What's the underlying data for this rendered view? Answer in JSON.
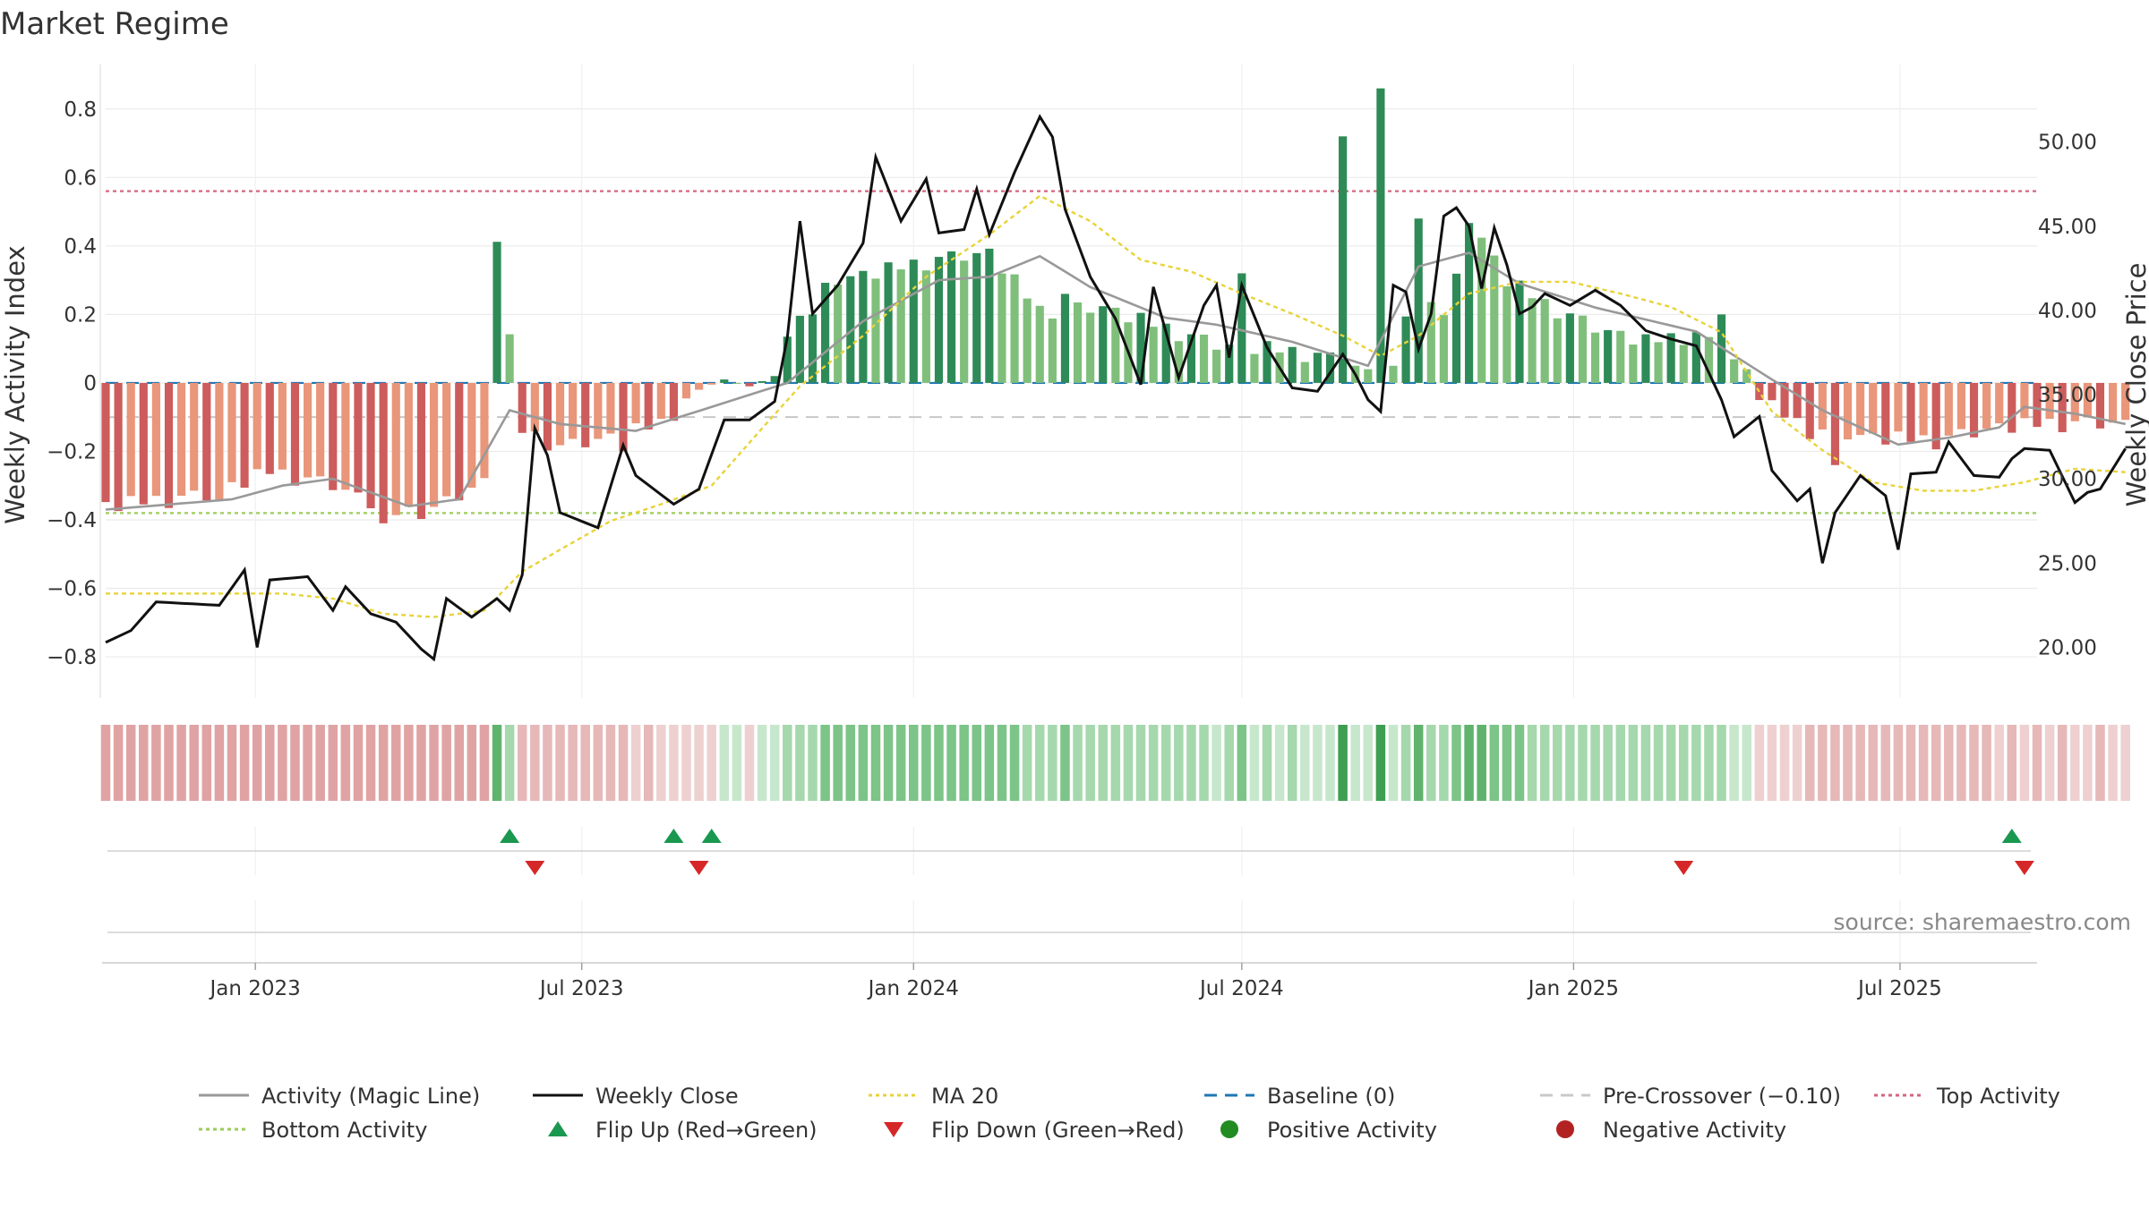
{
  "chart_data": {
    "type": "bar+line",
    "title": "Market Regime",
    "ylabel_left": "Weekly Activity Index",
    "ylabel_right": "Weekly Close Price",
    "source": "source: sharemaestro.com",
    "x_start": "2022-10-10",
    "x_end": "2025-09-15",
    "x_ticks": [
      {
        "date": "2023-01-01",
        "label": "Jan 2023"
      },
      {
        "date": "2023-07-01",
        "label": "Jul 2023"
      },
      {
        "date": "2024-01-01",
        "label": "Jan 2024"
      },
      {
        "date": "2024-07-01",
        "label": "Jul 2024"
      },
      {
        "date": "2025-01-01",
        "label": "Jan 2025"
      },
      {
        "date": "2025-07-01",
        "label": "Jul 2025"
      }
    ],
    "ylim_left": [
      -0.92,
      0.93
    ],
    "ylim_right": [
      17.0,
      54.6
    ],
    "y_ticks_left": [
      "0.8",
      "0.6",
      "0.4",
      "0.2",
      "0",
      "−0.2",
      "−0.4",
      "−0.6",
      "−0.8"
    ],
    "y_ticks_left_values": [
      0.8,
      0.6,
      0.4,
      0.2,
      0,
      -0.2,
      -0.4,
      -0.6,
      -0.8
    ],
    "y_ticks_right": [
      "50.00",
      "45.00",
      "40.00",
      "35.00",
      "30.00",
      "25.00",
      "20.00"
    ],
    "y_ticks_right_values": [
      50,
      45,
      40,
      35,
      30,
      25,
      20
    ],
    "reference_lines": {
      "top": 0.56,
      "bottom": -0.38,
      "baseline": 0,
      "pre_crossover": -0.1
    },
    "activity_keypoints": [
      [
        0,
        -0.36
      ],
      [
        8,
        -0.33
      ],
      [
        13,
        -0.26
      ],
      [
        18,
        -0.3
      ],
      [
        23,
        -0.38
      ],
      [
        26,
        -0.37
      ],
      [
        30,
        -0.29
      ],
      [
        31,
        0.43
      ],
      [
        32,
        0.12
      ],
      [
        33,
        -0.14
      ],
      [
        36,
        -0.19
      ],
      [
        40,
        -0.16
      ],
      [
        44,
        -0.12
      ],
      [
        47,
        -0.02
      ],
      [
        49,
        0.01
      ],
      [
        51,
        -0.01
      ],
      [
        53,
        0.02
      ],
      [
        55,
        0.22
      ],
      [
        58,
        0.3
      ],
      [
        62,
        0.33
      ],
      [
        66,
        0.36
      ],
      [
        70,
        0.38
      ],
      [
        74,
        0.21
      ],
      [
        79,
        0.22
      ],
      [
        83,
        0.17
      ],
      [
        88,
        0.11
      ],
      [
        92,
        0.1
      ],
      [
        96,
        0.08
      ],
      [
        100,
        0.04
      ],
      [
        101,
        0.02
      ],
      [
        102,
        0.05
      ],
      [
        103,
        0.2
      ],
      [
        104,
        0.33
      ],
      [
        106,
        0.19
      ],
      [
        107,
        0.3
      ],
      [
        108,
        0.48
      ],
      [
        111,
        0.3
      ],
      [
        114,
        0.23
      ],
      [
        118,
        0.16
      ],
      [
        122,
        0.12
      ],
      [
        126,
        0.14
      ],
      [
        130,
        0.04
      ],
      [
        131,
        -0.05
      ],
      [
        135,
        -0.14
      ],
      [
        140,
        -0.16
      ],
      [
        145,
        -0.17
      ],
      [
        150,
        -0.13
      ],
      [
        154,
        -0.12
      ],
      [
        160,
        -0.12
      ]
    ],
    "activity_overrides": [
      [
        9,
        -0.34
      ],
      [
        22,
        -0.41
      ],
      [
        41,
        -0.2
      ],
      [
        56,
        0.2
      ],
      [
        76,
        0.26
      ],
      [
        90,
        0.32
      ],
      [
        98,
        0.72
      ],
      [
        101,
        0.86
      ],
      [
        104,
        0.48
      ],
      [
        128,
        0.2
      ],
      [
        137,
        -0.24
      ]
    ],
    "close_keypoints": [
      [
        0,
        20.3
      ],
      [
        2,
        21.0
      ],
      [
        4,
        22.7
      ],
      [
        9,
        22.5
      ],
      [
        11,
        24.6
      ],
      [
        12,
        20.0
      ],
      [
        13,
        24.0
      ],
      [
        16,
        24.2
      ],
      [
        18,
        22.2
      ],
      [
        19,
        23.6
      ],
      [
        21,
        22.0
      ],
      [
        23,
        21.5
      ],
      [
        25,
        19.9
      ],
      [
        26,
        19.3
      ],
      [
        27,
        22.9
      ],
      [
        29,
        21.8
      ],
      [
        31,
        22.9
      ],
      [
        32,
        22.2
      ],
      [
        33,
        24.3
      ],
      [
        34,
        33.0
      ],
      [
        35,
        31.4
      ],
      [
        36,
        28.0
      ],
      [
        39,
        27.1
      ],
      [
        41,
        32.0
      ],
      [
        42,
        30.2
      ],
      [
        45,
        28.5
      ],
      [
        47,
        29.4
      ],
      [
        49,
        33.5
      ],
      [
        51,
        33.5
      ],
      [
        53,
        34.6
      ],
      [
        54,
        38.4
      ],
      [
        55,
        45.3
      ],
      [
        56,
        39.8
      ],
      [
        58,
        41.5
      ],
      [
        60,
        44.0
      ],
      [
        61,
        49.1
      ],
      [
        63,
        45.3
      ],
      [
        65,
        47.8
      ],
      [
        66,
        44.6
      ],
      [
        68,
        44.8
      ],
      [
        69,
        47.2
      ],
      [
        70,
        44.5
      ],
      [
        72,
        48.2
      ],
      [
        74,
        51.5
      ],
      [
        75,
        50.3
      ],
      [
        76,
        46.0
      ],
      [
        78,
        42.0
      ],
      [
        80,
        39.5
      ],
      [
        82,
        35.6
      ],
      [
        83,
        41.4
      ],
      [
        85,
        36.0
      ],
      [
        87,
        40.3
      ],
      [
        88,
        41.5
      ],
      [
        89,
        37.2
      ],
      [
        90,
        41.5
      ],
      [
        92,
        37.8
      ],
      [
        94,
        35.4
      ],
      [
        96,
        35.2
      ],
      [
        98,
        37.4
      ],
      [
        99,
        36.2
      ],
      [
        100,
        34.7
      ],
      [
        101,
        34.0
      ],
      [
        102,
        41.5
      ],
      [
        103,
        41.1
      ],
      [
        104,
        37.7
      ],
      [
        105,
        39.8
      ],
      [
        106,
        45.6
      ],
      [
        107,
        46.1
      ],
      [
        108,
        45.0
      ],
      [
        109,
        41.3
      ],
      [
        110,
        44.9
      ],
      [
        111,
        42.7
      ],
      [
        112,
        39.8
      ],
      [
        113,
        40.2
      ],
      [
        114,
        41.0
      ],
      [
        116,
        40.3
      ],
      [
        118,
        41.2
      ],
      [
        120,
        40.3
      ],
      [
        122,
        38.8
      ],
      [
        124,
        38.3
      ],
      [
        126,
        37.9
      ],
      [
        128,
        34.7
      ],
      [
        129,
        32.5
      ],
      [
        131,
        33.7
      ],
      [
        132,
        30.5
      ],
      [
        134,
        28.7
      ],
      [
        135,
        29.4
      ],
      [
        136,
        25.0
      ],
      [
        137,
        28.0
      ],
      [
        139,
        30.2
      ],
      [
        141,
        29.0
      ],
      [
        142,
        25.8
      ],
      [
        143,
        30.3
      ],
      [
        145,
        30.4
      ],
      [
        146,
        32.2
      ],
      [
        148,
        30.2
      ],
      [
        150,
        30.1
      ],
      [
        151,
        31.2
      ],
      [
        152,
        31.8
      ],
      [
        154,
        31.7
      ],
      [
        156,
        28.6
      ],
      [
        157,
        29.2
      ],
      [
        158,
        29.4
      ],
      [
        160,
        31.8
      ]
    ],
    "ma20_keypoints": [
      [
        0,
        23.2
      ],
      [
        14,
        23.2
      ],
      [
        18,
        22.9
      ],
      [
        22,
        22.0
      ],
      [
        26,
        21.8
      ],
      [
        30,
        22.2
      ],
      [
        33,
        24.5
      ],
      [
        36,
        25.8
      ],
      [
        40,
        27.5
      ],
      [
        44,
        28.5
      ],
      [
        48,
        29.6
      ],
      [
        52,
        33.0
      ],
      [
        55,
        35.5
      ],
      [
        60,
        38.5
      ],
      [
        65,
        42.0
      ],
      [
        70,
        44.5
      ],
      [
        74,
        46.8
      ],
      [
        78,
        45.3
      ],
      [
        82,
        43.0
      ],
      [
        86,
        42.3
      ],
      [
        90,
        41.0
      ],
      [
        94,
        39.8
      ],
      [
        98,
        38.5
      ],
      [
        101,
        37.3
      ],
      [
        104,
        38.5
      ],
      [
        108,
        41.0
      ],
      [
        112,
        41.7
      ],
      [
        116,
        41.7
      ],
      [
        120,
        41.0
      ],
      [
        124,
        40.2
      ],
      [
        128,
        38.7
      ],
      [
        132,
        34.0
      ],
      [
        136,
        31.7
      ],
      [
        140,
        29.8
      ],
      [
        144,
        29.3
      ],
      [
        148,
        29.3
      ],
      [
        152,
        29.8
      ],
      [
        156,
        30.6
      ],
      [
        160,
        30.4
      ]
    ],
    "magic_keypoints": [
      [
        0,
        -0.37
      ],
      [
        10,
        -0.34
      ],
      [
        14,
        -0.3
      ],
      [
        18,
        -0.28
      ],
      [
        24,
        -0.36
      ],
      [
        28,
        -0.34
      ],
      [
        32,
        -0.08
      ],
      [
        36,
        -0.12
      ],
      [
        42,
        -0.14
      ],
      [
        48,
        -0.07
      ],
      [
        54,
        0.0
      ],
      [
        60,
        0.18
      ],
      [
        66,
        0.3
      ],
      [
        70,
        0.31
      ],
      [
        74,
        0.37
      ],
      [
        78,
        0.28
      ],
      [
        84,
        0.19
      ],
      [
        88,
        0.17
      ],
      [
        94,
        0.12
      ],
      [
        100,
        0.05
      ],
      [
        104,
        0.34
      ],
      [
        108,
        0.38
      ],
      [
        112,
        0.29
      ],
      [
        118,
        0.22
      ],
      [
        126,
        0.15
      ],
      [
        132,
        0.01
      ],
      [
        136,
        -0.08
      ],
      [
        142,
        -0.18
      ],
      [
        146,
        -0.16
      ],
      [
        150,
        -0.13
      ],
      [
        152,
        -0.07
      ],
      [
        156,
        -0.09
      ],
      [
        160,
        -0.12
      ]
    ],
    "flips_up": [
      32,
      45,
      48,
      151
    ],
    "flips_down": [
      34,
      47,
      125,
      152
    ],
    "colors": {
      "bar_green_dark": "#2e8b57",
      "bar_green_light": "#7fbf7b",
      "bar_red_dark": "#cd5c5c",
      "bar_red_light": "#e9967a",
      "close_line": "#111111",
      "ma20_line": "#e8d33a",
      "magic_line": "#999999",
      "baseline": "#1f77b4",
      "pre_crossover": "#c8c8c8",
      "top_activity": "#d6657f",
      "bottom_activity": "#9acd5a",
      "flip_up": "#1a9850",
      "flip_down": "#d62728",
      "positive": "#228b22",
      "negative": "#b22222"
    },
    "legend": [
      {
        "label": "Activity (Magic Line)",
        "type": "line",
        "color": "#999999",
        "dash": ""
      },
      {
        "label": "Weekly Close",
        "type": "line",
        "color": "#111111",
        "dash": ""
      },
      {
        "label": "MA 20",
        "type": "line",
        "color": "#e8d33a",
        "dash": "4,4"
      },
      {
        "label": "Baseline (0)",
        "type": "line",
        "color": "#1f77b4",
        "dash": "14,9"
      },
      {
        "label": "Pre-Crossover (−0.10)",
        "type": "line",
        "color": "#c8c8c8",
        "dash": "14,9"
      },
      {
        "label": "Top Activity",
        "type": "line",
        "color": "#d6657f",
        "dash": "4,4"
      },
      {
        "label": "Bottom Activity",
        "type": "line",
        "color": "#9acd5a",
        "dash": "4,4"
      },
      {
        "label": "Flip Up (Red→Green)",
        "type": "triangle-up",
        "color": "#1a9850",
        "dash": ""
      },
      {
        "label": "Flip Down (Green→Red)",
        "type": "triangle-down",
        "color": "#d62728",
        "dash": ""
      },
      {
        "label": "Positive Activity",
        "type": "dot",
        "color": "#228b22",
        "dash": ""
      },
      {
        "label": "Negative Activity",
        "type": "dot",
        "color": "#b22222",
        "dash": ""
      }
    ],
    "legend_placement": "bottom",
    "grid": true
  }
}
